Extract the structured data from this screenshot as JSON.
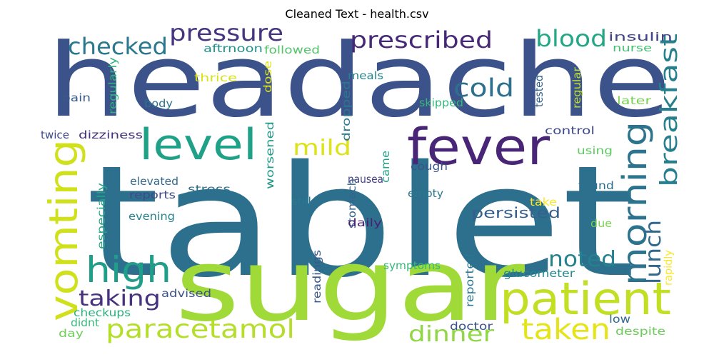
{
  "title": "Cleaned Text - health.csv",
  "words": [
    {
      "text": "tablet",
      "color": "#2d708e"
    },
    {
      "text": "headache",
      "color": "#3b528b"
    },
    {
      "text": "sugar",
      "color": "#a0da39"
    },
    {
      "text": "fever",
      "color": "#482576"
    },
    {
      "text": "patient",
      "color": "#c2df23"
    },
    {
      "text": "level",
      "color": "#1fa187"
    },
    {
      "text": "vomting",
      "color": "#d0e11c"
    },
    {
      "text": "high",
      "color": "#1f9e89"
    },
    {
      "text": "morning",
      "color": "#2c738e"
    },
    {
      "text": "paracetamol",
      "color": "#b5de2b"
    },
    {
      "text": "taken",
      "color": "#e5e419"
    },
    {
      "text": "prescribed",
      "color": "#482878"
    },
    {
      "text": "pressure",
      "color": "#463480"
    },
    {
      "text": "checked",
      "color": "#2a788e"
    },
    {
      "text": "blood",
      "color": "#22a884"
    },
    {
      "text": "cold",
      "color": "#2e6f8e"
    },
    {
      "text": "breakfast",
      "color": "#277f8e"
    },
    {
      "text": "lunch",
      "color": "#31688e"
    },
    {
      "text": "taking",
      "color": "#46327e"
    },
    {
      "text": "noted",
      "color": "#26818e"
    },
    {
      "text": "dinner",
      "color": "#8fd744"
    },
    {
      "text": "mild",
      "color": "#dde318"
    },
    {
      "text": "persisted",
      "color": "#355f8d"
    },
    {
      "text": "insulin",
      "color": "#414487"
    },
    {
      "text": "nurse",
      "color": "#44bf70"
    },
    {
      "text": "aftrnoon",
      "color": "#21918c"
    },
    {
      "text": "followed",
      "color": "#52c569"
    },
    {
      "text": "regularly",
      "color": "#2fb47c"
    },
    {
      "text": "thrice",
      "color": "#d8e219"
    },
    {
      "text": "dose",
      "color": "#dde318"
    },
    {
      "text": "meals",
      "color": "#26828e"
    },
    {
      "text": "pain",
      "color": "#38598c"
    },
    {
      "text": "body",
      "color": "#2c728e"
    },
    {
      "text": "skipped",
      "color": "#35b779"
    },
    {
      "text": "tested",
      "color": "#33638d"
    },
    {
      "text": "regular",
      "color": "#bddf26"
    },
    {
      "text": "later",
      "color": "#7ad151"
    },
    {
      "text": "control",
      "color": "#3e4989"
    },
    {
      "text": "twice",
      "color": "#3e4a89"
    },
    {
      "text": "dizziness",
      "color": "#46337e"
    },
    {
      "text": "dropped",
      "color": "#2a788e"
    },
    {
      "text": "worsened",
      "color": "#1f9a8a"
    },
    {
      "text": "nausea",
      "color": "#423f85"
    },
    {
      "text": "came",
      "color": "#20a386"
    },
    {
      "text": "cough",
      "color": "#3a538b"
    },
    {
      "text": "using",
      "color": "#5ec962"
    },
    {
      "text": "elevated",
      "color": "#31688e"
    },
    {
      "text": "reports",
      "color": "#3e4a89"
    },
    {
      "text": "stress",
      "color": "#2c718e"
    },
    {
      "text": "especially",
      "color": "#21a685"
    },
    {
      "text": "still",
      "color": "#2a788e"
    },
    {
      "text": "stomach",
      "color": "#33638d"
    },
    {
      "text": "empty",
      "color": "#2a768e"
    },
    {
      "text": "found",
      "color": "#2d708e"
    },
    {
      "text": "take",
      "color": "#fde725"
    },
    {
      "text": "evening",
      "color": "#25838e"
    },
    {
      "text": "due",
      "color": "#7ad151"
    },
    {
      "text": "daily",
      "color": "#482173"
    },
    {
      "text": "readings",
      "color": "#37598c"
    },
    {
      "text": "symptoms",
      "color": "#35b779"
    },
    {
      "text": "reported",
      "color": "#2a768e"
    },
    {
      "text": "glucometer",
      "color": "#23898e"
    },
    {
      "text": "rapidly",
      "color": "#fde725"
    },
    {
      "text": "advised",
      "color": "#3b528b"
    },
    {
      "text": "checkups",
      "color": "#2cb17e"
    },
    {
      "text": "didnt",
      "color": "#35b779"
    },
    {
      "text": "day",
      "color": "#70cf57"
    },
    {
      "text": "doctor",
      "color": "#3b528b"
    },
    {
      "text": "low",
      "color": "#31688e"
    },
    {
      "text": "despite",
      "color": "#6ccd5a"
    }
  ]
}
